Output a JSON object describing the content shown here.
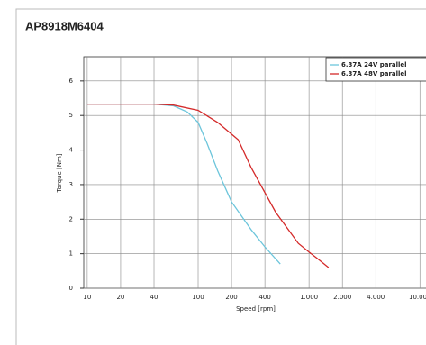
{
  "chart_data": {
    "type": "line",
    "title": "AP8918M6404",
    "x_label": "Speed [rpm]",
    "y_label": "Torque [Nm]",
    "log_x": true,
    "grid": true,
    "legend": "upper right",
    "xlim": [
      9.3,
      12000
    ],
    "xticks": [
      10,
      20,
      40,
      100,
      200,
      400,
      {
        "value": 1000,
        "label": "1.000"
      },
      {
        "value": 2000,
        "label": "2.000"
      },
      {
        "value": 4000,
        "label": "4.000"
      },
      {
        "value": 10000,
        "label": "10.000"
      }
    ],
    "ylim": [
      0,
      6.7
    ],
    "yticks": [
      0,
      1,
      2,
      3,
      4,
      5,
      6
    ],
    "series": [
      {
        "name": "6.37A 24V parallel",
        "color": "#6cc5db",
        "x": [
          10,
          20,
          40,
          60,
          80,
          100,
          120,
          150,
          200,
          300,
          400,
          550
        ],
        "values": [
          5.33,
          5.33,
          5.33,
          5.28,
          5.1,
          4.8,
          4.2,
          3.4,
          2.5,
          1.7,
          1.2,
          0.7
        ]
      },
      {
        "name": "6.37A 48V parallel",
        "color": "#d42a2a",
        "x": [
          10,
          20,
          40,
          60,
          100,
          150,
          230,
          300,
          500,
          800,
          1000,
          1200,
          1500
        ],
        "values": [
          5.33,
          5.33,
          5.33,
          5.3,
          5.15,
          4.8,
          4.3,
          3.5,
          2.2,
          1.3,
          1.05,
          0.85,
          0.6
        ]
      }
    ]
  }
}
